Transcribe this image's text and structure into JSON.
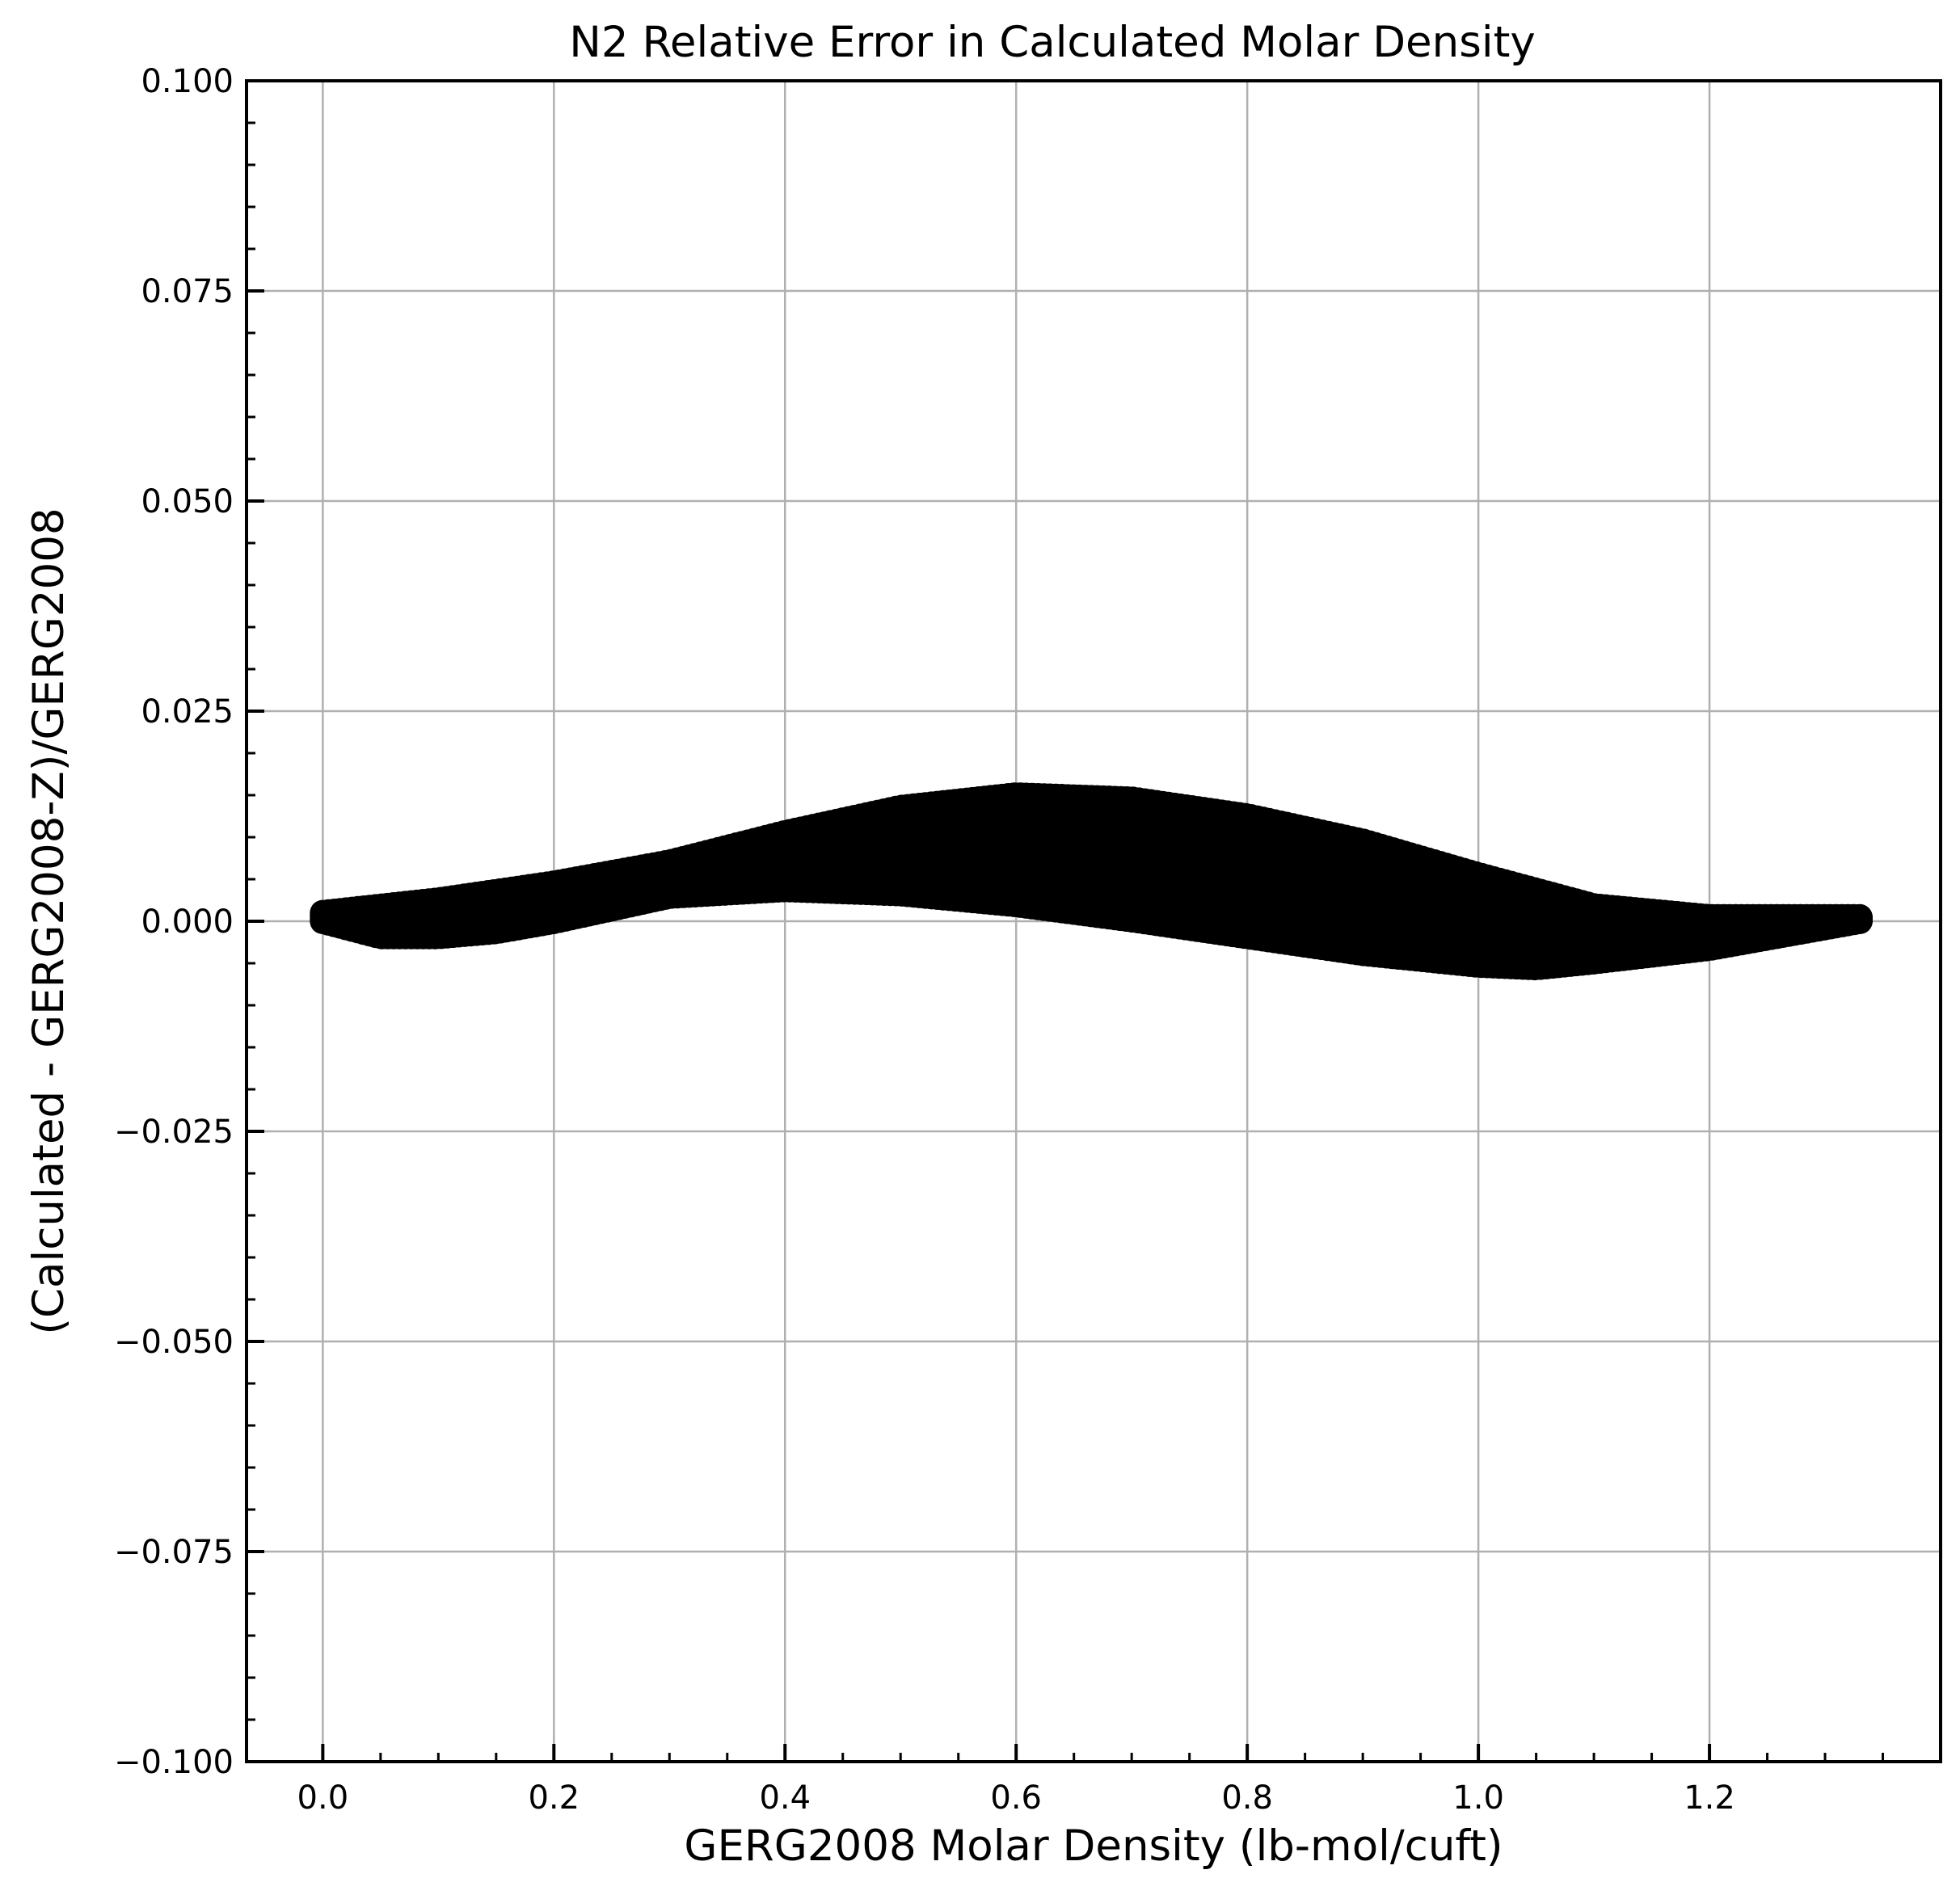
{
  "chart_data": {
    "type": "scatter",
    "title": "N2 Relative Error in Calculated Molar Density",
    "xlabel": "GERG2008 Molar Density (lb-mol/cuft)",
    "ylabel": "(Calculated - GERG2008-Z)/GERG2008",
    "xlim": [
      -0.066,
      1.4
    ],
    "ylim": [
      -0.1,
      0.1
    ],
    "xticks": [
      0.0,
      0.2,
      0.4,
      0.6,
      0.8,
      1.0,
      1.2
    ],
    "xtick_labels": [
      "0.0",
      "0.2",
      "0.4",
      "0.6",
      "0.8",
      "1.0",
      "1.2"
    ],
    "yticks": [
      0.1,
      0.075,
      0.05,
      0.025,
      0.0,
      -0.025,
      -0.05,
      -0.075,
      -0.1
    ],
    "ytick_labels": [
      "0.100",
      "0.075",
      "0.050",
      "0.025",
      "0.000",
      "−0.025",
      "−0.050",
      "−0.075",
      "−0.100"
    ],
    "grid": true,
    "marker_color": "#000000",
    "series": [
      {
        "description_upper_edge": true,
        "x": [
          0.0,
          0.1,
          0.2,
          0.3,
          0.4,
          0.5,
          0.6,
          0.7,
          0.8,
          0.9,
          1.0,
          1.1,
          1.2,
          1.33
        ],
        "y": [
          0.001,
          0.0025,
          0.0045,
          0.007,
          0.0105,
          0.0135,
          0.015,
          0.0145,
          0.0125,
          0.0095,
          0.0055,
          0.0018,
          0.0005,
          0.0005
        ]
      },
      {
        "description_lower_edge": true,
        "x": [
          0.0,
          0.05,
          0.1,
          0.15,
          0.2,
          0.3,
          0.4,
          0.5,
          0.6,
          0.7,
          0.8,
          0.9,
          1.0,
          1.05,
          1.1,
          1.2,
          1.33
        ],
        "y": [
          0.0,
          -0.0018,
          -0.0018,
          -0.0012,
          0.0,
          0.003,
          0.0038,
          0.0033,
          0.002,
          0.0002,
          -0.0018,
          -0.0038,
          -0.0052,
          -0.0055,
          -0.0048,
          -0.0032,
          0.0
        ]
      }
    ]
  }
}
